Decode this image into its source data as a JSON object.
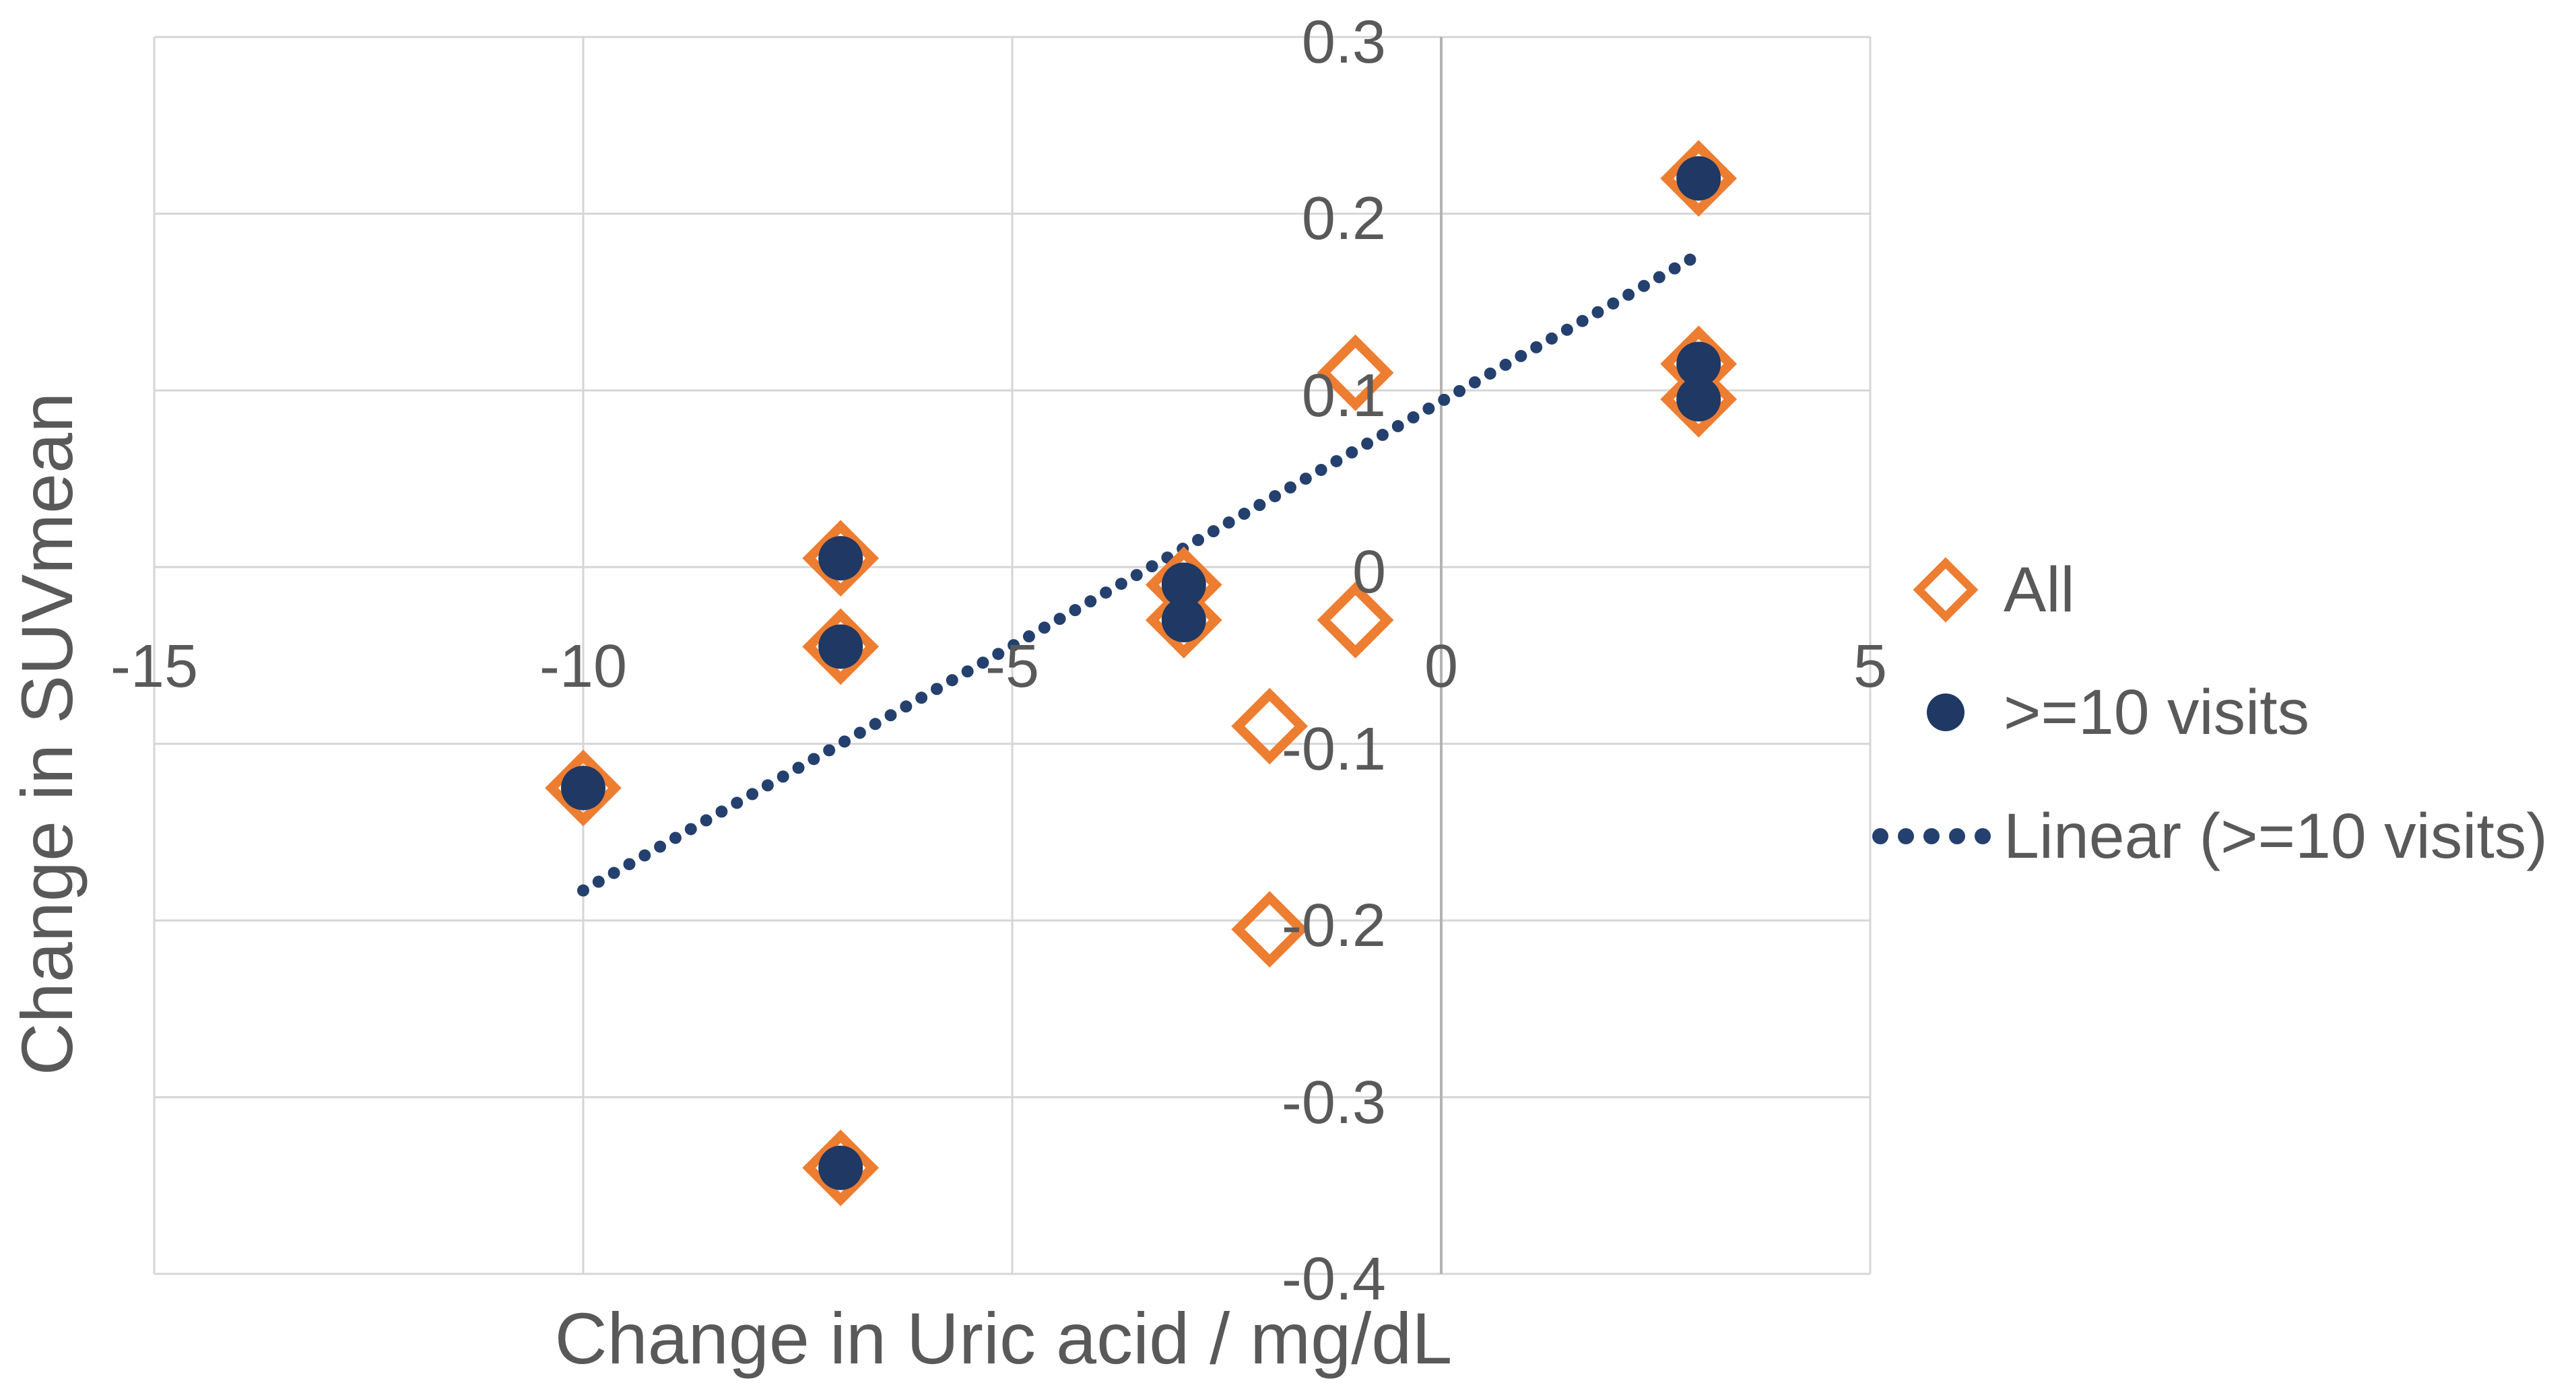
{
  "chart_data": {
    "type": "scatter",
    "title": "",
    "xlabel": "Change in Uric acid / mg/dL",
    "ylabel": "Change in SUVmean",
    "xlim": [
      -15,
      5
    ],
    "ylim": [
      -0.4,
      0.3
    ],
    "grid": true,
    "legend_position": "right",
    "xticks": [
      {
        "v": -15,
        "label": "-15"
      },
      {
        "v": -10,
        "label": "-10"
      },
      {
        "v": -5,
        "label": "-5"
      },
      {
        "v": 0,
        "label": "0"
      },
      {
        "v": 5,
        "label": "5"
      }
    ],
    "yticks": [
      {
        "v": 0.3,
        "label": "0.3"
      },
      {
        "v": 0.2,
        "label": "0.2"
      },
      {
        "v": 0.1,
        "label": "0.1"
      },
      {
        "v": 0,
        "label": "0"
      },
      {
        "v": -0.1,
        "label": "-0.1"
      },
      {
        "v": -0.2,
        "label": "-0.2"
      },
      {
        "v": -0.3,
        "label": "-0.3"
      },
      {
        "v": -0.4,
        "label": "-0.4"
      }
    ],
    "series": [
      {
        "name": "All",
        "marker": "open-diamond",
        "color": "#ED7D31",
        "points": [
          {
            "x": -10,
            "y": -0.125
          },
          {
            "x": -7,
            "y": 0.005
          },
          {
            "x": -7,
            "y": -0.045
          },
          {
            "x": -7,
            "y": -0.34
          },
          {
            "x": -3,
            "y": -0.01
          },
          {
            "x": -3,
            "y": -0.03
          },
          {
            "x": -2,
            "y": -0.09
          },
          {
            "x": -2,
            "y": -0.205
          },
          {
            "x": -1,
            "y": 0.11
          },
          {
            "x": -1,
            "y": -0.03
          },
          {
            "x": 3,
            "y": 0.22
          },
          {
            "x": 3,
            "y": 0.115
          },
          {
            "x": 3,
            "y": 0.095
          }
        ]
      },
      {
        "name": ">=10 visits",
        "marker": "filled-circle",
        "color": "#1F3864",
        "points": [
          {
            "x": -10,
            "y": -0.125
          },
          {
            "x": -7,
            "y": 0.005
          },
          {
            "x": -7,
            "y": -0.045
          },
          {
            "x": -7,
            "y": -0.34
          },
          {
            "x": -3,
            "y": -0.01
          },
          {
            "x": -3,
            "y": -0.03
          },
          {
            "x": 3,
            "y": 0.22
          },
          {
            "x": 3,
            "y": 0.115
          },
          {
            "x": 3,
            "y": 0.095
          }
        ]
      },
      {
        "name": "Linear (>=10 visits)",
        "marker": "dotted-line",
        "color": "#24406E",
        "trend": {
          "x1": -10,
          "y1": -0.183,
          "x2": 2.9,
          "y2": 0.174
        }
      }
    ]
  },
  "colors": {
    "orange": "#ED7D31",
    "navy": "#1F3864",
    "trend": "#24406E",
    "grid": "#D6D6D6",
    "zero_axis": "#B3B3B3",
    "text": "#595959"
  }
}
